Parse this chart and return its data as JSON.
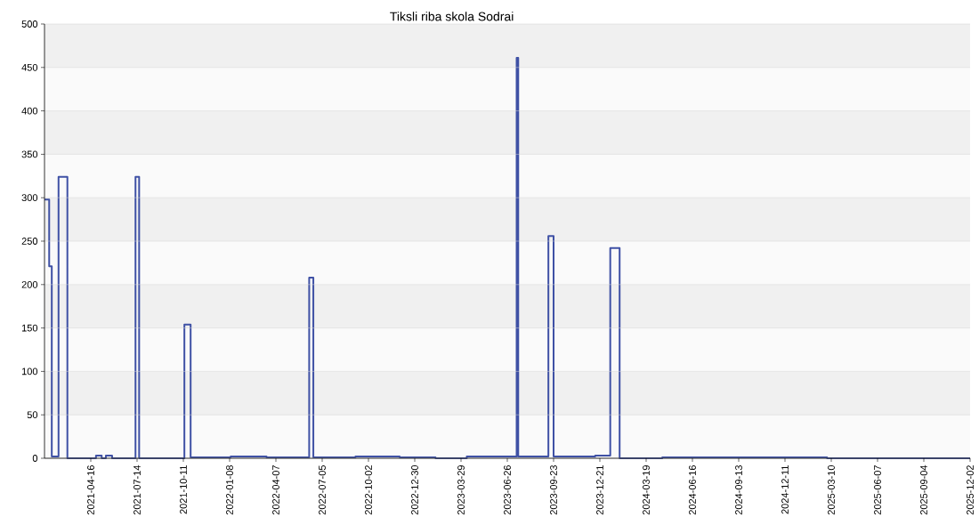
{
  "chart_data": {
    "type": "step",
    "title": "Tiksli riba skola Sodrai",
    "x": [
      "2021-01-17",
      "2021-01-26",
      "2021-01-31",
      "2021-02-13",
      "2021-03-02",
      "2021-04-26",
      "2021-05-07",
      "2021-05-15",
      "2021-05-27",
      "2021-07-11",
      "2021-07-18",
      "2021-10-13",
      "2021-10-25",
      "2022-01-10",
      "2022-03-20",
      "2022-06-10",
      "2022-06-18",
      "2022-09-07",
      "2022-12-01",
      "2023-02-08",
      "2023-04-09",
      "2023-07-14",
      "2023-07-17",
      "2023-09-13",
      "2023-09-23",
      "2023-12-12",
      "2024-01-10",
      "2024-01-28",
      "2024-04-19",
      "2025-03-02",
      "2025-12-02"
    ],
    "values": [
      298,
      221,
      2,
      324,
      0,
      3,
      0,
      3,
      0,
      324,
      0,
      154,
      1,
      2,
      1,
      208,
      1,
      2,
      1,
      0,
      2,
      461,
      2,
      256,
      2,
      3,
      242,
      0,
      1,
      0,
      0
    ],
    "color": "#3f51a5",
    "xlim": [
      "2021-01-17",
      "2025-12-02"
    ],
    "xticks": [
      "2021-04-16",
      "2021-07-14",
      "2021-10-11",
      "2022-01-08",
      "2022-04-07",
      "2022-07-05",
      "2022-10-02",
      "2022-12-30",
      "2023-03-29",
      "2023-06-26",
      "2023-09-23",
      "2023-12-21",
      "2024-03-19",
      "2024-06-16",
      "2024-09-13",
      "2024-12-11",
      "2025-03-10",
      "2025-06-07",
      "2025-09-04",
      "2025-12-02"
    ],
    "ylim": [
      0,
      500
    ],
    "yticks": [
      0,
      50,
      100,
      150,
      200,
      250,
      300,
      350,
      400,
      450,
      500
    ],
    "grid": "y"
  }
}
